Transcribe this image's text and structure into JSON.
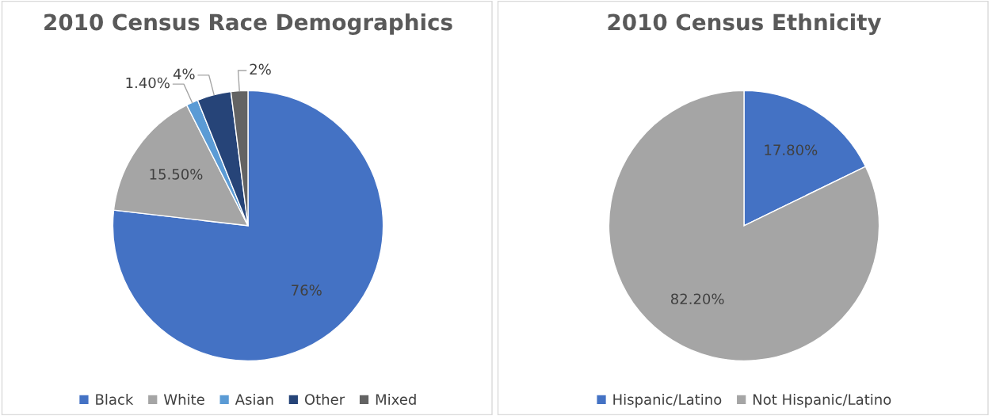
{
  "chart_data": [
    {
      "type": "pie",
      "title": "2010 Census Race Demographics",
      "categories": [
        "Black",
        "White",
        "Asian",
        "Other",
        "Mixed"
      ],
      "values": [
        76,
        15.5,
        1.4,
        4,
        2
      ],
      "value_labels": [
        "76%",
        "15.50%",
        "1.40%",
        "4%",
        "2%"
      ],
      "colors": [
        "#4472c4",
        "#a5a5a5",
        "#5b9bd5",
        "#264478",
        "#636363"
      ],
      "legend": "bottom"
    },
    {
      "type": "pie",
      "title": "2010 Census Ethnicity",
      "categories": [
        "Hispanic/Latino",
        "Not Hispanic/Latino"
      ],
      "values": [
        17.8,
        82.2
      ],
      "value_labels": [
        "17.80%",
        "82.20%"
      ],
      "colors": [
        "#4472c4",
        "#a5a5a5"
      ],
      "legend": "bottom"
    }
  ]
}
